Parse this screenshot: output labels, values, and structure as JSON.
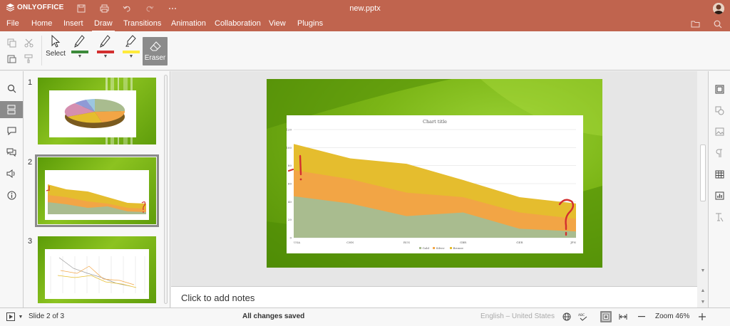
{
  "app": {
    "brand": "ONLYOFFICE",
    "doc_title": "new.pptx"
  },
  "menu": [
    "File",
    "Home",
    "Insert",
    "Draw",
    "Transitions",
    "Animation",
    "Collaboration",
    "View",
    "Plugins"
  ],
  "menu_active": "Draw",
  "toolbar": {
    "select_label": "Select",
    "eraser_label": "Eraser",
    "pens": [
      {
        "name": "green-pen",
        "color": "#3c8a3a"
      },
      {
        "name": "red-pen",
        "color": "#d32f2f"
      },
      {
        "name": "yellow-pen",
        "color": "#ffeb3b"
      }
    ]
  },
  "slides_panel": {
    "numbers": [
      "1",
      "2",
      "3"
    ],
    "selected": 2
  },
  "notes": {
    "placeholder": "Click to add notes"
  },
  "status": {
    "slide_info": "Slide 2 of 3",
    "save_state": "All changes saved",
    "language": "English – United States",
    "zoom": "Zoom 46%"
  },
  "chart_data": {
    "type": "area",
    "title": "Chart title",
    "categories": [
      "USA",
      "CHN",
      "RUS",
      "GBR",
      "GER",
      "JPN"
    ],
    "ylim": [
      0,
      120
    ],
    "yticks": [
      "0",
      "20",
      "40",
      "60",
      "80",
      "100",
      "120"
    ],
    "stacked": true,
    "series": [
      {
        "name": "Gold",
        "color": "#a9bc8f",
        "values": [
          46,
          38,
          24,
          28,
          10,
          7
        ]
      },
      {
        "name": "Silver",
        "color": "#f2a545",
        "values": [
          29,
          27,
          26,
          17,
          18,
          14
        ]
      },
      {
        "name": "Bronze",
        "color": "#e5bd2e",
        "values": [
          29,
          23,
          32,
          19,
          17,
          17
        ]
      }
    ],
    "legend_position": "bottom"
  }
}
